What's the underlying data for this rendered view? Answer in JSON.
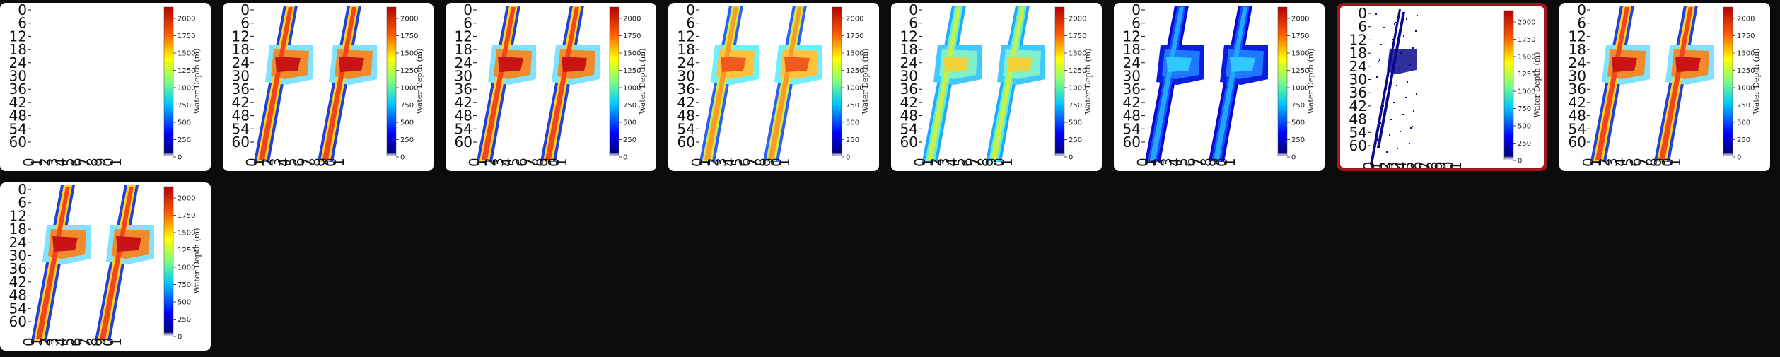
{
  "colors": {
    "background": "#0b0b0b",
    "card": "#ffffff",
    "selected_border": "#a3161b"
  },
  "plot_common": {
    "colorbar_label": "Water Depth (m)",
    "colorbar_ticks": [
      "2000",
      "1750",
      "1500",
      "1250",
      "1000",
      "750",
      "500",
      "250",
      "0"
    ],
    "y_ticks": [
      "0",
      "6",
      "12",
      "18",
      "24",
      "30",
      "36",
      "42",
      "48",
      "54",
      "60"
    ],
    "x_ticks": [
      "0",
      "1",
      "2",
      "3",
      "4",
      "5",
      "6",
      "7",
      "8",
      "9",
      "0",
      "1"
    ]
  },
  "thumbnails": [
    {
      "id": 1,
      "variant": "empty",
      "selected": false
    },
    {
      "id": 2,
      "variant": "red",
      "selected": false
    },
    {
      "id": 3,
      "variant": "red",
      "selected": false
    },
    {
      "id": 4,
      "variant": "orange",
      "selected": false
    },
    {
      "id": 5,
      "variant": "green",
      "selected": false
    },
    {
      "id": 6,
      "variant": "blue",
      "selected": false
    },
    {
      "id": 7,
      "variant": "dark",
      "selected": true
    },
    {
      "id": 8,
      "variant": "red",
      "selected": false
    },
    {
      "id": 9,
      "variant": "red",
      "selected": false
    }
  ]
}
